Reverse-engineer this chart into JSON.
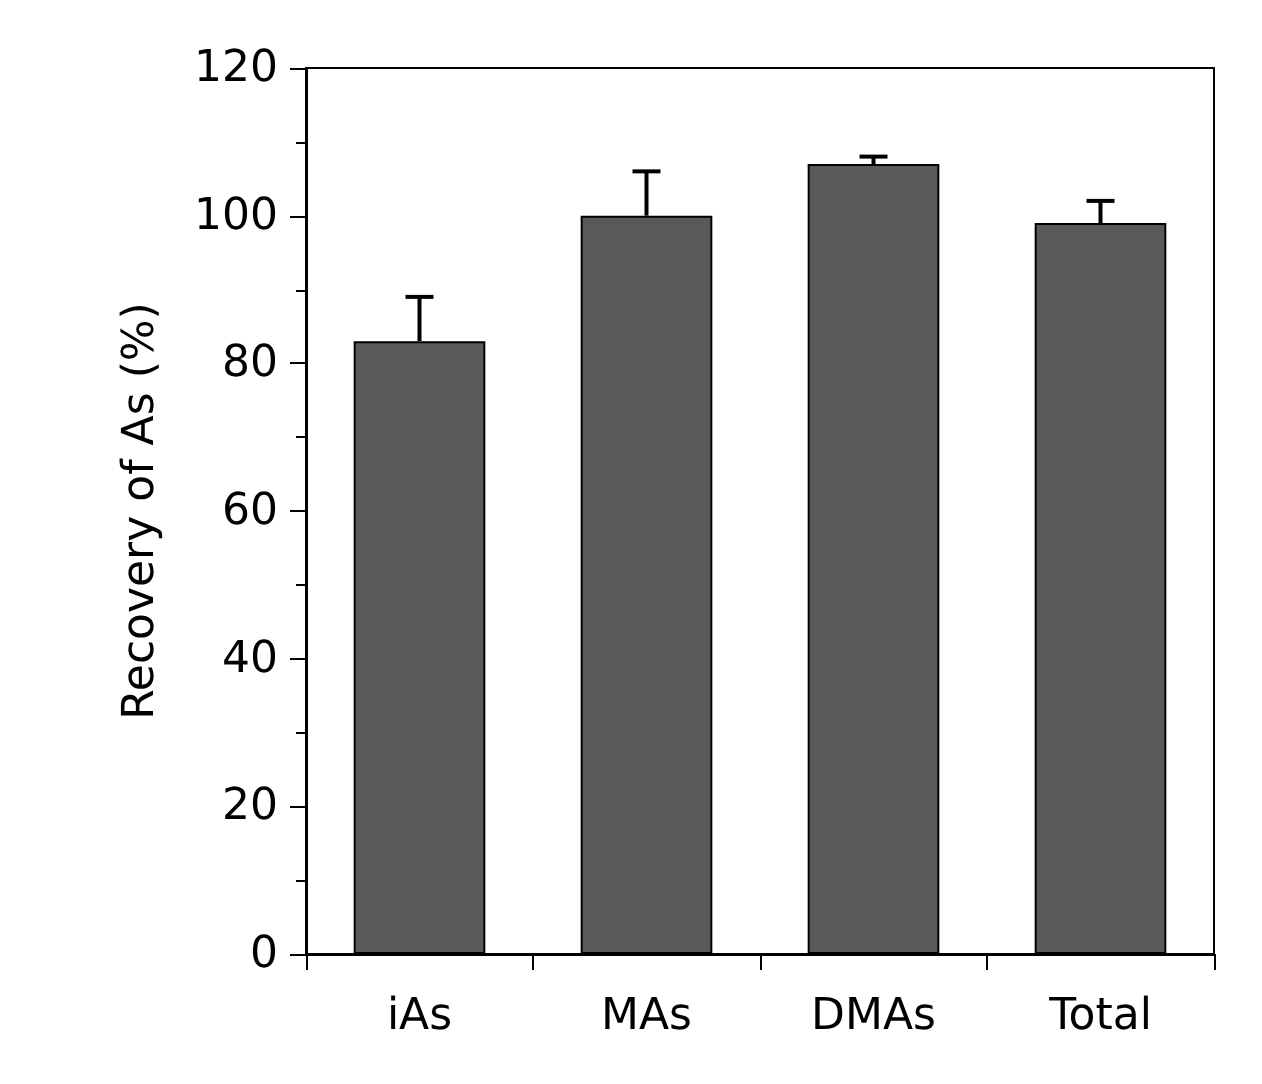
{
  "chart_data": {
    "type": "bar",
    "ylabel": "Recovery of As (%)",
    "categories": [
      "iAs",
      "MAs",
      "DMAs",
      "Total"
    ],
    "values": [
      83,
      100,
      107,
      99
    ],
    "color": "#595959",
    "errors": [
      [
        83,
        89
      ],
      [
        100,
        106
      ],
      [
        107,
        108
      ],
      [
        99,
        102
      ]
    ],
    "ylim": [
      0,
      120
    ],
    "yticks": [
      0,
      20,
      40,
      60,
      80,
      100,
      120
    ],
    "grid": false
  }
}
